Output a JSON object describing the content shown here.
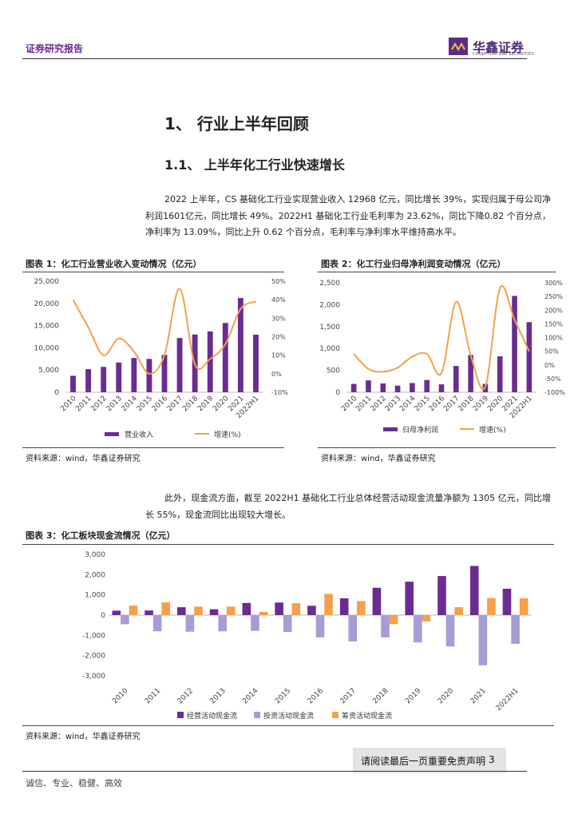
{
  "header": {
    "report_type": "证券研究报告",
    "brand": "华鑫证券",
    "brand_sub": "CHINA FORTUNE SECURITIES"
  },
  "section": {
    "h1": "1、 行业上半年回顾",
    "h2": "1.1、 上半年化工行业快速增长"
  },
  "paragraph1": "2022 上半年，CS 基础化工行业实现营业收入 12968 亿元，同比增长 39%，实现归属于母公司净利润1601亿元，同比增长 49%。2022H1 基础化工行业毛利率为 23.62%，同比下降0.82 个百分点，净利率为 13.09%，同比上升 0.62 个百分点，毛利率与净利率水平维持高水平。",
  "paragraph2": "此外，现金流方面，截至 2022H1 基础化工行业总体经营活动现金流量净额为 1305 亿元，同比增长 55%，现金流同比出现较大增长。",
  "figures": {
    "fig1_title": "图表 1：化工行业营业收入变动情况（亿元）",
    "fig2_title": "图表 2：化工行业归母净利润变动情况（亿元）",
    "fig3_title": "图表 3：化工板块现金流情况（亿元）",
    "source1": "资料来源：wind，华鑫证券研究",
    "source2": "资料来源：wind，华鑫证券研究",
    "source3": "资料来源：wind，华鑫证券研究"
  },
  "footer": {
    "disclaimer": "请阅读最后一页重要免责声明",
    "page": "3",
    "motto": "诚信、专业、稳健、高效"
  },
  "colors": {
    "purple": "#6a2c91",
    "orange": "#f5a04a",
    "lavender": "#a99bd6",
    "orange_bar": "#f5a04a"
  },
  "chart_data": [
    {
      "type": "bar",
      "title": "化工行业营业收入变动情况（亿元）",
      "categories": [
        "2010",
        "2011",
        "2012",
        "2013",
        "2014",
        "2015",
        "2016",
        "2017",
        "2018",
        "2019",
        "2020",
        "2021",
        "2022H1"
      ],
      "series": [
        {
          "name": "营业收入",
          "type": "bar",
          "axis": "left",
          "values": [
            3700,
            5200,
            5700,
            6700,
            7700,
            7500,
            8400,
            12200,
            13000,
            13700,
            15600,
            21200,
            12968
          ]
        },
        {
          "name": "增速(%)",
          "type": "line",
          "axis": "right",
          "values": [
            40,
            25,
            10,
            19,
            12,
            0,
            10,
            46,
            5,
            8,
            16,
            35,
            39
          ]
        }
      ],
      "left_ticks": [
        "0",
        "5,000",
        "10,000",
        "15,000",
        "20,000",
        "25,000"
      ],
      "ylim_left": [
        0,
        25000
      ],
      "right_ticks": [
        "-10%",
        "0%",
        "10%",
        "20%",
        "30%",
        "40%",
        "50%"
      ],
      "ylim_right": [
        -10,
        50
      ]
    },
    {
      "type": "bar",
      "title": "化工行业归母净利润变动情况（亿元）",
      "categories": [
        "2010",
        "2011",
        "2012",
        "2013",
        "2014",
        "2015",
        "2016",
        "2017",
        "2018",
        "2019",
        "2020",
        "2021",
        "2022H1"
      ],
      "series": [
        {
          "name": "归母净利润",
          "type": "bar",
          "axis": "left",
          "values": [
            190,
            270,
            200,
            150,
            210,
            280,
            180,
            600,
            850,
            190,
            820,
            2200,
            1601
          ]
        },
        {
          "name": "增速(%)",
          "type": "line",
          "axis": "right",
          "values": [
            40,
            -15,
            -25,
            -10,
            30,
            40,
            -30,
            230,
            35,
            -80,
            280,
            165,
            49
          ]
        }
      ],
      "left_ticks": [
        "0",
        "500",
        "1,000",
        "1,500",
        "2,000",
        "2,500"
      ],
      "ylim_left": [
        0,
        2500
      ],
      "right_ticks": [
        "-100%",
        "-50%",
        "0%",
        "50%",
        "100%",
        "150%",
        "200%",
        "250%",
        "300%"
      ],
      "ylim_right": [
        -100,
        300
      ]
    },
    {
      "type": "bar",
      "title": "化工板块现金流情况（亿元）",
      "categories": [
        "2010",
        "2011",
        "2012",
        "2013",
        "2014",
        "2015",
        "2016",
        "2017",
        "2018",
        "2019",
        "2020",
        "2021",
        "2022H1"
      ],
      "series": [
        {
          "name": "经营活动现金流",
          "values": [
            220,
            230,
            390,
            290,
            600,
            620,
            460,
            830,
            1350,
            1650,
            1930,
            2430,
            1305
          ]
        },
        {
          "name": "投资活动现金流",
          "values": [
            -450,
            -800,
            -820,
            -800,
            -780,
            -830,
            -1100,
            -1300,
            -1100,
            -1350,
            -1550,
            -2480,
            -1420
          ]
        },
        {
          "name": "筹资活动现金流",
          "values": [
            470,
            630,
            420,
            420,
            160,
            590,
            1050,
            690,
            -450,
            -320,
            390,
            840,
            830
          ]
        }
      ],
      "left_ticks": [
        "-3,000",
        "-2,000",
        "-1,000",
        "0",
        "1,000",
        "2,000",
        "3,000"
      ],
      "ylim": [
        -3000,
        3000
      ]
    }
  ]
}
